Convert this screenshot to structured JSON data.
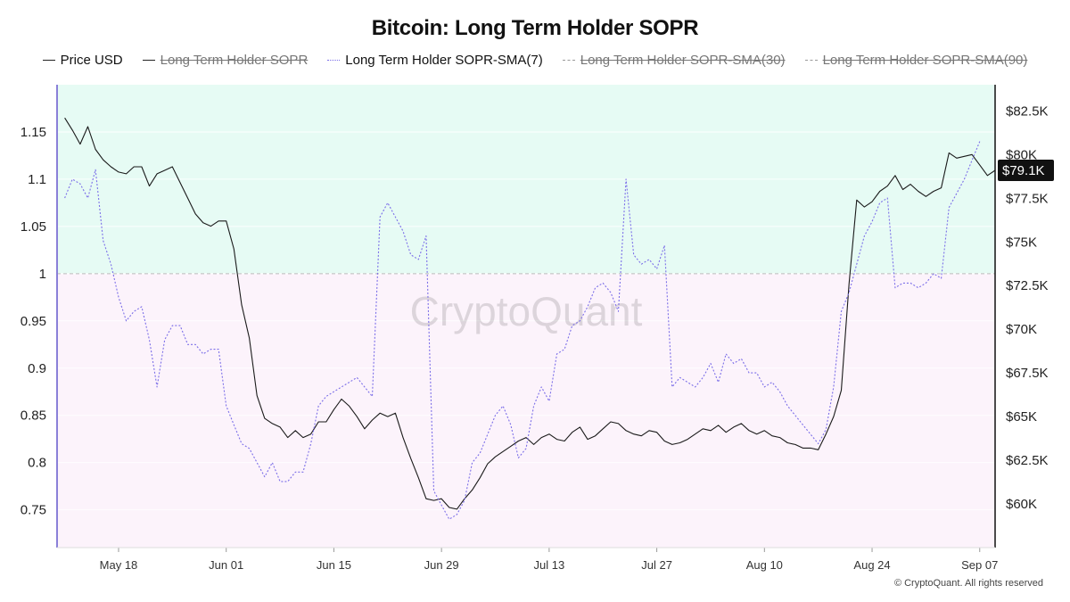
{
  "page": {
    "title": "Bitcoin: Long Term Holder SOPR",
    "watermark": "CryptoQuant",
    "copyright": "© CryptoQuant. All rights reserved",
    "current_price_label": "$79.1K"
  },
  "legend": [
    {
      "label": "Price USD",
      "style": "solid",
      "hidden": false
    },
    {
      "label": "Long Term Holder SOPR",
      "style": "solid",
      "hidden": true
    },
    {
      "label": "Long Term Holder SOPR-SMA(7)",
      "style": "dotted",
      "hidden": false
    },
    {
      "label": "Long Term Holder SOPR-SMA(30)",
      "style": "dashed",
      "hidden": true
    },
    {
      "label": "Long Term Holder SOPR-SMA(90)",
      "style": "dashed",
      "hidden": true
    }
  ],
  "colors": {
    "above_one_bg": "#e6fbf4",
    "below_one_bg": "#fcf3fb",
    "price_line": "#1a1a1a",
    "sma7_line": "#7b6ee8",
    "left_axis_line": "#8a80d8",
    "price_tag_bg": "#111111"
  },
  "chart_data": {
    "type": "line",
    "title": "Bitcoin: Long Term Holder SOPR",
    "x_ticks": [
      "May 18",
      "Jun 01",
      "Jun 15",
      "Jun 29",
      "Jul 13",
      "Jul 27",
      "Aug 10",
      "Aug 24",
      "Sep 07"
    ],
    "x_range": [
      "2024-05-10",
      "2024-09-09"
    ],
    "y_left": {
      "label": "",
      "ticks": [
        1.15,
        1.1,
        1.05,
        1,
        0.95,
        0.9,
        0.85,
        0.8,
        0.75
      ],
      "range": [
        0.71,
        1.2
      ],
      "reference_line": 1
    },
    "y_right": {
      "label": "",
      "ticks": [
        "$82.5K",
        "$80K",
        "$77.5K",
        "$75K",
        "$72.5K",
        "$70K",
        "$67.5K",
        "$65K",
        "$62.5K",
        "$60K"
      ],
      "range_usd": [
        57500,
        84000
      ]
    },
    "series": [
      {
        "name": "Price USD",
        "axis": "right",
        "points": [
          [
            "2024-05-11",
            82100
          ],
          [
            "2024-05-12",
            81400
          ],
          [
            "2024-05-13",
            80600
          ],
          [
            "2024-05-14",
            81600
          ],
          [
            "2024-05-15",
            80300
          ],
          [
            "2024-05-16",
            79700
          ],
          [
            "2024-05-17",
            79300
          ],
          [
            "2024-05-18",
            79000
          ],
          [
            "2024-05-19",
            78900
          ],
          [
            "2024-05-20",
            79300
          ],
          [
            "2024-05-21",
            79300
          ],
          [
            "2024-05-22",
            78200
          ],
          [
            "2024-05-23",
            78900
          ],
          [
            "2024-05-24",
            79100
          ],
          [
            "2024-05-25",
            79300
          ],
          [
            "2024-05-26",
            78400
          ],
          [
            "2024-05-27",
            77500
          ],
          [
            "2024-05-28",
            76600
          ],
          [
            "2024-05-29",
            76100
          ],
          [
            "2024-05-30",
            75900
          ],
          [
            "2024-05-31",
            76200
          ],
          [
            "2024-06-01",
            76200
          ],
          [
            "2024-06-02",
            74600
          ],
          [
            "2024-06-03",
            71400
          ],
          [
            "2024-06-04",
            69500
          ],
          [
            "2024-06-05",
            66200
          ],
          [
            "2024-06-06",
            64900
          ],
          [
            "2024-06-07",
            64600
          ],
          [
            "2024-06-08",
            64400
          ],
          [
            "2024-06-09",
            63800
          ],
          [
            "2024-06-10",
            64200
          ],
          [
            "2024-06-11",
            63800
          ],
          [
            "2024-06-12",
            64000
          ],
          [
            "2024-06-13",
            64700
          ],
          [
            "2024-06-14",
            64700
          ],
          [
            "2024-06-15",
            65400
          ],
          [
            "2024-06-16",
            66000
          ],
          [
            "2024-06-17",
            65600
          ],
          [
            "2024-06-18",
            65000
          ],
          [
            "2024-06-19",
            64300
          ],
          [
            "2024-06-20",
            64800
          ],
          [
            "2024-06-21",
            65200
          ],
          [
            "2024-06-22",
            65000
          ],
          [
            "2024-06-23",
            65200
          ],
          [
            "2024-06-24",
            63800
          ],
          [
            "2024-06-25",
            62600
          ],
          [
            "2024-06-26",
            61500
          ],
          [
            "2024-06-27",
            60300
          ],
          [
            "2024-06-28",
            60200
          ],
          [
            "2024-06-29",
            60300
          ],
          [
            "2024-06-30",
            59800
          ],
          [
            "2024-07-01",
            59700
          ],
          [
            "2024-07-02",
            60300
          ],
          [
            "2024-07-03",
            60800
          ],
          [
            "2024-07-04",
            61500
          ],
          [
            "2024-07-05",
            62300
          ],
          [
            "2024-07-06",
            62700
          ],
          [
            "2024-07-07",
            63000
          ],
          [
            "2024-07-08",
            63300
          ],
          [
            "2024-07-09",
            63600
          ],
          [
            "2024-07-10",
            63800
          ],
          [
            "2024-07-11",
            63400
          ],
          [
            "2024-07-12",
            63800
          ],
          [
            "2024-07-13",
            64000
          ],
          [
            "2024-07-14",
            63700
          ],
          [
            "2024-07-15",
            63600
          ],
          [
            "2024-07-16",
            64100
          ],
          [
            "2024-07-17",
            64400
          ],
          [
            "2024-07-18",
            63700
          ],
          [
            "2024-07-19",
            63900
          ],
          [
            "2024-07-20",
            64300
          ],
          [
            "2024-07-21",
            64700
          ],
          [
            "2024-07-22",
            64600
          ],
          [
            "2024-07-23",
            64200
          ],
          [
            "2024-07-24",
            64000
          ],
          [
            "2024-07-25",
            63900
          ],
          [
            "2024-07-26",
            64200
          ],
          [
            "2024-07-27",
            64100
          ],
          [
            "2024-07-28",
            63600
          ],
          [
            "2024-07-29",
            63400
          ],
          [
            "2024-07-30",
            63500
          ],
          [
            "2024-07-31",
            63700
          ],
          [
            "2024-08-01",
            64000
          ],
          [
            "2024-08-02",
            64300
          ],
          [
            "2024-08-03",
            64200
          ],
          [
            "2024-08-04",
            64500
          ],
          [
            "2024-08-05",
            64100
          ],
          [
            "2024-08-06",
            64400
          ],
          [
            "2024-08-07",
            64600
          ],
          [
            "2024-08-08",
            64200
          ],
          [
            "2024-08-09",
            64000
          ],
          [
            "2024-08-10",
            64200
          ],
          [
            "2024-08-11",
            63900
          ],
          [
            "2024-08-12",
            63800
          ],
          [
            "2024-08-13",
            63500
          ],
          [
            "2024-08-14",
            63400
          ],
          [
            "2024-08-15",
            63200
          ],
          [
            "2024-08-16",
            63200
          ],
          [
            "2024-08-17",
            63100
          ],
          [
            "2024-08-18",
            64000
          ],
          [
            "2024-08-19",
            65000
          ],
          [
            "2024-08-20",
            66500
          ],
          [
            "2024-08-21",
            72600
          ],
          [
            "2024-08-22",
            77400
          ],
          [
            "2024-08-23",
            77000
          ],
          [
            "2024-08-24",
            77300
          ],
          [
            "2024-08-25",
            77900
          ],
          [
            "2024-08-26",
            78200
          ],
          [
            "2024-08-27",
            78800
          ],
          [
            "2024-08-28",
            78000
          ],
          [
            "2024-08-29",
            78300
          ],
          [
            "2024-08-30",
            77900
          ],
          [
            "2024-08-31",
            77600
          ],
          [
            "2024-09-01",
            77900
          ],
          [
            "2024-09-02",
            78100
          ],
          [
            "2024-09-03",
            80100
          ],
          [
            "2024-09-04",
            79800
          ],
          [
            "2024-09-05",
            79900
          ],
          [
            "2024-09-06",
            80000
          ],
          [
            "2024-09-07",
            79400
          ],
          [
            "2024-09-08",
            78800
          ],
          [
            "2024-09-09",
            79100
          ]
        ]
      },
      {
        "name": "Long Term Holder SOPR-SMA(7)",
        "axis": "left",
        "points": [
          [
            "2024-05-11",
            1.08
          ],
          [
            "2024-05-12",
            1.1
          ],
          [
            "2024-05-13",
            1.095
          ],
          [
            "2024-05-14",
            1.08
          ],
          [
            "2024-05-15",
            1.11
          ],
          [
            "2024-05-16",
            1.035
          ],
          [
            "2024-05-17",
            1.01
          ],
          [
            "2024-05-18",
            0.975
          ],
          [
            "2024-05-19",
            0.95
          ],
          [
            "2024-05-20",
            0.96
          ],
          [
            "2024-05-21",
            0.965
          ],
          [
            "2024-05-22",
            0.93
          ],
          [
            "2024-05-23",
            0.88
          ],
          [
            "2024-05-24",
            0.93
          ],
          [
            "2024-05-25",
            0.945
          ],
          [
            "2024-05-26",
            0.945
          ],
          [
            "2024-05-27",
            0.925
          ],
          [
            "2024-05-28",
            0.925
          ],
          [
            "2024-05-29",
            0.915
          ],
          [
            "2024-05-30",
            0.92
          ],
          [
            "2024-05-31",
            0.92
          ],
          [
            "2024-06-01",
            0.86
          ],
          [
            "2024-06-02",
            0.84
          ],
          [
            "2024-06-03",
            0.82
          ],
          [
            "2024-06-04",
            0.815
          ],
          [
            "2024-06-05",
            0.8
          ],
          [
            "2024-06-06",
            0.785
          ],
          [
            "2024-06-07",
            0.8
          ],
          [
            "2024-06-08",
            0.78
          ],
          [
            "2024-06-09",
            0.78
          ],
          [
            "2024-06-10",
            0.79
          ],
          [
            "2024-06-11",
            0.79
          ],
          [
            "2024-06-12",
            0.82
          ],
          [
            "2024-06-13",
            0.86
          ],
          [
            "2024-06-14",
            0.87
          ],
          [
            "2024-06-15",
            0.875
          ],
          [
            "2024-06-16",
            0.88
          ],
          [
            "2024-06-17",
            0.885
          ],
          [
            "2024-06-18",
            0.89
          ],
          [
            "2024-06-19",
            0.88
          ],
          [
            "2024-06-20",
            0.87
          ],
          [
            "2024-06-21",
            1.06
          ],
          [
            "2024-06-22",
            1.075
          ],
          [
            "2024-06-23",
            1.06
          ],
          [
            "2024-06-24",
            1.045
          ],
          [
            "2024-06-25",
            1.02
          ],
          [
            "2024-06-26",
            1.015
          ],
          [
            "2024-06-27",
            1.04
          ],
          [
            "2024-06-28",
            0.77
          ],
          [
            "2024-06-29",
            0.755
          ],
          [
            "2024-06-30",
            0.74
          ],
          [
            "2024-07-01",
            0.745
          ],
          [
            "2024-07-02",
            0.76
          ],
          [
            "2024-07-03",
            0.8
          ],
          [
            "2024-07-04",
            0.81
          ],
          [
            "2024-07-05",
            0.83
          ],
          [
            "2024-07-06",
            0.85
          ],
          [
            "2024-07-07",
            0.86
          ],
          [
            "2024-07-08",
            0.84
          ],
          [
            "2024-07-09",
            0.805
          ],
          [
            "2024-07-10",
            0.815
          ],
          [
            "2024-07-11",
            0.86
          ],
          [
            "2024-07-12",
            0.88
          ],
          [
            "2024-07-13",
            0.865
          ],
          [
            "2024-07-14",
            0.915
          ],
          [
            "2024-07-15",
            0.92
          ],
          [
            "2024-07-16",
            0.945
          ],
          [
            "2024-07-17",
            0.95
          ],
          [
            "2024-07-18",
            0.965
          ],
          [
            "2024-07-19",
            0.985
          ],
          [
            "2024-07-20",
            0.99
          ],
          [
            "2024-07-21",
            0.98
          ],
          [
            "2024-07-22",
            0.96
          ],
          [
            "2024-07-23",
            1.1
          ],
          [
            "2024-07-24",
            1.02
          ],
          [
            "2024-07-25",
            1.01
          ],
          [
            "2024-07-26",
            1.015
          ],
          [
            "2024-07-27",
            1.005
          ],
          [
            "2024-07-28",
            1.03
          ],
          [
            "2024-07-29",
            0.88
          ],
          [
            "2024-07-30",
            0.89
          ],
          [
            "2024-07-31",
            0.885
          ],
          [
            "2024-08-01",
            0.88
          ],
          [
            "2024-08-02",
            0.89
          ],
          [
            "2024-08-03",
            0.905
          ],
          [
            "2024-08-04",
            0.885
          ],
          [
            "2024-08-05",
            0.915
          ],
          [
            "2024-08-06",
            0.905
          ],
          [
            "2024-08-07",
            0.91
          ],
          [
            "2024-08-08",
            0.895
          ],
          [
            "2024-08-09",
            0.895
          ],
          [
            "2024-08-10",
            0.88
          ],
          [
            "2024-08-11",
            0.885
          ],
          [
            "2024-08-12",
            0.875
          ],
          [
            "2024-08-13",
            0.86
          ],
          [
            "2024-08-14",
            0.85
          ],
          [
            "2024-08-15",
            0.84
          ],
          [
            "2024-08-16",
            0.83
          ],
          [
            "2024-08-17",
            0.82
          ],
          [
            "2024-08-18",
            0.835
          ],
          [
            "2024-08-19",
            0.88
          ],
          [
            "2024-08-20",
            0.96
          ],
          [
            "2024-08-21",
            0.98
          ],
          [
            "2024-08-22",
            1.01
          ],
          [
            "2024-08-23",
            1.04
          ],
          [
            "2024-08-24",
            1.055
          ],
          [
            "2024-08-25",
            1.075
          ],
          [
            "2024-08-26",
            1.08
          ],
          [
            "2024-08-27",
            0.985
          ],
          [
            "2024-08-28",
            0.99
          ],
          [
            "2024-08-29",
            0.99
          ],
          [
            "2024-08-30",
            0.985
          ],
          [
            "2024-08-31",
            0.99
          ],
          [
            "2024-09-01",
            1.0
          ],
          [
            "2024-09-02",
            0.995
          ],
          [
            "2024-09-03",
            1.07
          ],
          [
            "2024-09-04",
            1.085
          ],
          [
            "2024-09-05",
            1.1
          ],
          [
            "2024-09-06",
            1.12
          ],
          [
            "2024-09-07",
            1.14
          ]
        ]
      }
    ]
  }
}
